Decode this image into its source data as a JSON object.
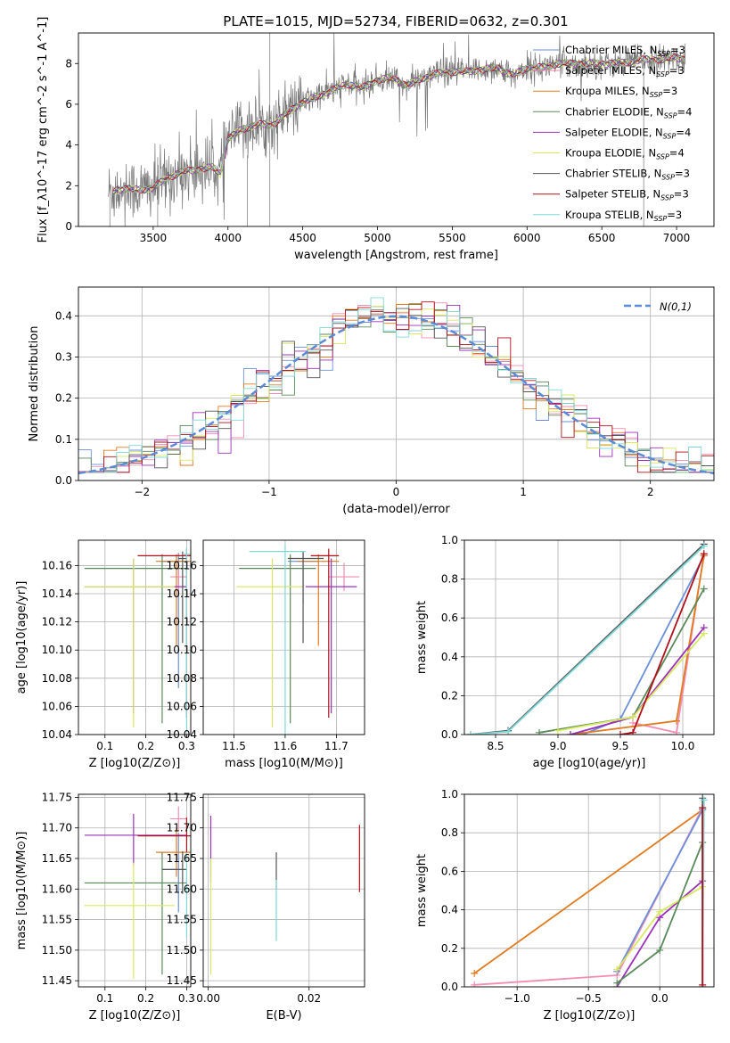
{
  "colors": {
    "Chabrier MILES": "#6a8fd8",
    "Salpeter MILES": "#f28db2",
    "Kroupa MILES": "#e07b20",
    "Chabrier ELODIE": "#5a8a5a",
    "Salpeter ELODIE": "#9b30b8",
    "Kroupa ELODIE": "#d8e860",
    "Chabrier STELIB": "#555555",
    "Salpeter STELIB": "#b0101a",
    "Kroupa STELIB": "#7fd8d8",
    "gaussian": "#5b8ad6",
    "data": "#777777"
  },
  "chart_data": [
    {
      "id": "spectrum",
      "type": "line",
      "title": "PLATE=1015, MJD=52734, FIBERID=0632, z=0.301",
      "xlabel": "wavelength [Angstrom, rest frame]",
      "ylabel": "Flux [f_λ10^-17 erg cm^-2 s^-1 A^-1]",
      "xlim": [
        3000,
        7250
      ],
      "ylim": [
        0,
        9.5
      ],
      "xticks": [
        3500,
        4000,
        4500,
        5000,
        5500,
        6000,
        6500,
        7000
      ],
      "yticks": [
        0,
        2,
        4,
        6,
        8
      ],
      "grid": false,
      "legend_position": "top-right",
      "legend": [
        {
          "base": "Chabrier MILES",
          "nssp": "3"
        },
        {
          "base": "Salpeter MILES",
          "nssp": "3"
        },
        {
          "base": "Kroupa MILES",
          "nssp": "3"
        },
        {
          "base": "Chabrier ELODIE",
          "nssp": "4"
        },
        {
          "base": "Salpeter ELODIE",
          "nssp": "4"
        },
        {
          "base": "Kroupa ELODIE",
          "nssp": "4"
        },
        {
          "base": "Chabrier STELIB",
          "nssp": "3"
        },
        {
          "base": "Salpeter STELIB",
          "nssp": "3"
        },
        {
          "base": "Kroupa STELIB",
          "nssp": "3"
        }
      ],
      "continuum": [
        [
          3200,
          1.7
        ],
        [
          3300,
          1.85
        ],
        [
          3400,
          1.8
        ],
        [
          3500,
          1.9
        ],
        [
          3600,
          2.4
        ],
        [
          3700,
          2.7
        ],
        [
          3800,
          2.8
        ],
        [
          3900,
          2.9
        ],
        [
          3950,
          2.6
        ],
        [
          4000,
          4.3
        ],
        [
          4100,
          4.8
        ],
        [
          4200,
          5.0
        ],
        [
          4300,
          5.0
        ],
        [
          4400,
          5.6
        ],
        [
          4500,
          6.1
        ],
        [
          4600,
          6.4
        ],
        [
          4700,
          6.7
        ],
        [
          4800,
          7.0
        ],
        [
          4900,
          6.8
        ],
        [
          5000,
          7.2
        ],
        [
          5100,
          7.3
        ],
        [
          5200,
          6.9
        ],
        [
          5300,
          7.3
        ],
        [
          5400,
          7.5
        ],
        [
          5500,
          7.6
        ],
        [
          5600,
          7.6
        ],
        [
          5700,
          7.7
        ],
        [
          5800,
          7.8
        ],
        [
          5900,
          7.4
        ],
        [
          6000,
          7.8
        ],
        [
          6100,
          7.8
        ],
        [
          6200,
          8.0
        ],
        [
          6300,
          8.0
        ],
        [
          6400,
          8.0
        ],
        [
          6500,
          8.0
        ],
        [
          6600,
          8.0
        ],
        [
          6700,
          8.1
        ],
        [
          6800,
          8.2
        ],
        [
          6900,
          8.2
        ],
        [
          7000,
          8.3
        ],
        [
          7060,
          8.2
        ]
      ]
    },
    {
      "id": "residuals",
      "type": "histogram",
      "xlabel": "(data-model)/error",
      "ylabel": "Normed distribution",
      "xlim": [
        -2.5,
        2.5
      ],
      "ylim": [
        0,
        0.47
      ],
      "xticks": [
        -2,
        -1,
        0,
        1,
        2
      ],
      "yticks": [
        0.0,
        0.1,
        0.2,
        0.3,
        0.4
      ],
      "grid": true,
      "legend_position": "top-right",
      "gaussian_label": "N(0,1)",
      "bin_width": 0.1
    },
    {
      "id": "age-vs-Z",
      "type": "errorbar",
      "xlabel": "Z [log10(Z/Z⊙)]",
      "ylabel": "age  [log10(age/yr)]",
      "xlim": [
        0.035,
        0.31
      ],
      "ylim": [
        10.04,
        10.178
      ],
      "xticks": [
        0.1,
        0.2,
        0.3
      ],
      "yticks": [
        10.04,
        10.06,
        10.08,
        10.1,
        10.12,
        10.14,
        10.16
      ],
      "grid": true,
      "points": [
        {
          "series": "Chabrier MILES",
          "x": 0.28,
          "y": 10.163,
          "xerr": [
            0.04,
            0.02
          ],
          "yerr": [
            0.09,
            0.006
          ]
        },
        {
          "series": "Salpeter MILES",
          "x": 0.28,
          "y": 10.152,
          "xerr": [
            0.02,
            0.02
          ],
          "yerr": [
            0.01,
            0.01
          ]
        },
        {
          "series": "Kroupa MILES",
          "x": 0.275,
          "y": 10.163,
          "xerr": [
            0.05,
            0.035
          ],
          "yerr": [
            0.06,
            0.005
          ]
        },
        {
          "series": "Chabrier ELODIE",
          "x": 0.24,
          "y": 10.158,
          "xerr": [
            0.19,
            0.06
          ],
          "yerr": [
            0.11,
            0.01
          ]
        },
        {
          "series": "Salpeter ELODIE",
          "x": 0.17,
          "y": 10.145,
          "xerr": [
            0.12,
            0.13
          ],
          "yerr": [
            0.09,
            0.02
          ]
        },
        {
          "series": "Kroupa ELODIE",
          "x": 0.17,
          "y": 10.145,
          "xerr": [
            0.12,
            0.1
          ],
          "yerr": [
            0.1,
            0.02
          ]
        },
        {
          "series": "Chabrier STELIB",
          "x": 0.29,
          "y": 10.165,
          "xerr": [
            0.01,
            0.01
          ],
          "yerr": [
            0.06,
            0.005
          ]
        },
        {
          "series": "Salpeter STELIB",
          "x": 0.3,
          "y": 10.167,
          "xerr": [
            0.12,
            0.01
          ],
          "yerr": [
            0.115,
            0.005
          ]
        },
        {
          "series": "Kroupa STELIB",
          "x": 0.3,
          "y": 10.168,
          "xerr": [
            0.01,
            0.01
          ],
          "yerr": [
            0.125,
            0.005
          ]
        }
      ]
    },
    {
      "id": "age-vs-mass",
      "type": "errorbar",
      "xlabel": "mass [log10(M/M⊙)]",
      "ylabel": "",
      "xlim": [
        11.44,
        11.755
      ],
      "ylim": [
        10.04,
        10.178
      ],
      "xticks": [
        11.5,
        11.6,
        11.7
      ],
      "yticks": [
        10.04,
        10.06,
        10.08,
        10.1,
        10.12,
        10.14,
        10.16
      ],
      "grid": true,
      "points": [
        {
          "series": "Chabrier MILES",
          "x": 11.635,
          "y": 10.163,
          "xerr": [
            0.03,
            0.03
          ],
          "yerr": [
            0.03,
            0.006
          ]
        },
        {
          "series": "Salpeter MILES",
          "x": 11.715,
          "y": 10.152,
          "xerr": [
            0.03,
            0.03
          ],
          "yerr": [
            0.01,
            0.01
          ]
        },
        {
          "series": "Kroupa MILES",
          "x": 11.665,
          "y": 10.163,
          "xerr": [
            0.04,
            0.04
          ],
          "yerr": [
            0.06,
            0.005
          ]
        },
        {
          "series": "Chabrier ELODIE",
          "x": 11.61,
          "y": 10.158,
          "xerr": [
            0.1,
            0.05
          ],
          "yerr": [
            0.11,
            0.01
          ]
        },
        {
          "series": "Salpeter ELODIE",
          "x": 11.69,
          "y": 10.145,
          "xerr": [
            0.05,
            0.05
          ],
          "yerr": [
            0.09,
            0.02
          ]
        },
        {
          "series": "Kroupa ELODIE",
          "x": 11.575,
          "y": 10.145,
          "xerr": [
            0.07,
            0.06
          ],
          "yerr": [
            0.1,
            0.02
          ]
        },
        {
          "series": "Chabrier STELIB",
          "x": 11.635,
          "y": 10.165,
          "xerr": [
            0.03,
            0.04
          ],
          "yerr": [
            0.06,
            0.005
          ]
        },
        {
          "series": "Salpeter STELIB",
          "x": 11.685,
          "y": 10.167,
          "xerr": [
            0.035,
            0.02
          ],
          "yerr": [
            0.115,
            0.005
          ]
        },
        {
          "series": "Kroupa STELIB",
          "x": 11.6,
          "y": 10.17,
          "xerr": [
            0.07,
            0.04
          ],
          "yerr": [
            0.13,
            0.005
          ]
        }
      ]
    },
    {
      "id": "weight-vs-age",
      "type": "line",
      "xlabel": "age  [log10(age/yr)]",
      "ylabel": "mass weight",
      "xlim": [
        8.25,
        10.25
      ],
      "ylim": [
        0,
        1.0
      ],
      "xticks": [
        8.5,
        9.0,
        9.5,
        10.0
      ],
      "yticks": [
        0.0,
        0.2,
        0.4,
        0.6,
        0.8,
        1.0
      ],
      "grid": true,
      "series": [
        {
          "series": "Chabrier MILES",
          "x": [
            9.2,
            9.5,
            10.17
          ],
          "y": [
            0.0,
            0.08,
            0.92
          ]
        },
        {
          "series": "Salpeter MILES",
          "x": [
            9.6,
            9.95,
            10.17
          ],
          "y": [
            0.06,
            0.01,
            0.93
          ]
        },
        {
          "series": "Kroupa MILES",
          "x": [
            9.1,
            9.95,
            10.17
          ],
          "y": [
            0.0,
            0.07,
            0.92
          ]
        },
        {
          "series": "Chabrier ELODIE",
          "x": [
            8.85,
            9.6,
            10.17
          ],
          "y": [
            0.01,
            0.09,
            0.75
          ]
        },
        {
          "series": "Salpeter ELODIE",
          "x": [
            9.1,
            9.6,
            10.17
          ],
          "y": [
            0.0,
            0.09,
            0.55
          ]
        },
        {
          "series": "Kroupa ELODIE",
          "x": [
            9.0,
            9.6,
            10.17
          ],
          "y": [
            0.02,
            0.09,
            0.52
          ]
        },
        {
          "series": "Chabrier STELIB",
          "x": [
            8.3,
            8.6,
            10.17
          ],
          "y": [
            0.0,
            0.02,
            0.98
          ]
        },
        {
          "series": "Salpeter STELIB",
          "x": [
            9.5,
            9.6,
            10.17
          ],
          "y": [
            0.0,
            0.01,
            0.93
          ]
        },
        {
          "series": "Kroupa STELIB",
          "x": [
            8.3,
            8.6,
            10.17
          ],
          "y": [
            0.0,
            0.015,
            0.97
          ]
        }
      ]
    },
    {
      "id": "mass-vs-Z",
      "type": "errorbar",
      "xlabel": "Z [log10(Z/Z⊙)]",
      "ylabel": "mass [log10(M/M⊙)]",
      "xlim": [
        0.035,
        0.31
      ],
      "ylim": [
        11.44,
        11.755
      ],
      "xticks": [
        0.1,
        0.2,
        0.3
      ],
      "yticks": [
        11.45,
        11.5,
        11.55,
        11.6,
        11.65,
        11.7,
        11.75
      ],
      "grid": true,
      "points": [
        {
          "series": "Chabrier MILES",
          "x": 0.28,
          "y": 11.632,
          "xerr": [
            0.04,
            0.02
          ],
          "yerr": [
            0.07,
            0.06
          ]
        },
        {
          "series": "Salpeter MILES",
          "x": 0.28,
          "y": 11.715,
          "xerr": [
            0.02,
            0.02
          ],
          "yerr": [
            0.02,
            0.02
          ]
        },
        {
          "series": "Kroupa MILES",
          "x": 0.275,
          "y": 11.66,
          "xerr": [
            0.05,
            0.035
          ],
          "yerr": [
            0.04,
            0.04
          ]
        },
        {
          "series": "Chabrier ELODIE",
          "x": 0.24,
          "y": 11.61,
          "xerr": [
            0.19,
            0.06
          ],
          "yerr": [
            0.15,
            0.05
          ]
        },
        {
          "series": "Salpeter ELODIE",
          "x": 0.17,
          "y": 11.688,
          "xerr": [
            0.12,
            0.13
          ],
          "yerr": [
            0.05,
            0.035
          ]
        },
        {
          "series": "Kroupa ELODIE",
          "x": 0.17,
          "y": 11.573,
          "xerr": [
            0.12,
            0.1
          ],
          "yerr": [
            0.12,
            0.07
          ]
        },
        {
          "series": "Chabrier STELIB",
          "x": 0.29,
          "y": 11.632,
          "xerr": [
            0.05,
            0.01
          ],
          "yerr": [
            0.04,
            0.03
          ]
        },
        {
          "series": "Salpeter STELIB",
          "x": 0.3,
          "y": 11.687,
          "xerr": [
            0.12,
            0.01
          ],
          "yerr": [
            0.04,
            0.03
          ]
        },
        {
          "series": "Kroupa STELIB",
          "x": 0.3,
          "y": 11.6,
          "xerr": [
            0.01,
            0.01
          ],
          "yerr": [
            0.08,
            0.06
          ]
        }
      ]
    },
    {
      "id": "mass-vs-ebv",
      "type": "errorbar",
      "xlabel": "E(B-V)",
      "ylabel": "",
      "xlim": [
        -0.001,
        0.031
      ],
      "ylim": [
        11.44,
        11.755
      ],
      "xticks": [
        0.0,
        0.02
      ],
      "yticks": [
        11.45,
        11.5,
        11.55,
        11.6,
        11.65,
        11.7,
        11.75
      ],
      "grid": true,
      "points": [
        {
          "series": "Salpeter ELODIE",
          "x": 0.0005,
          "y": 11.665,
          "xerr": [
            0,
            0
          ],
          "yerr": [
            0.055,
            0.055
          ]
        },
        {
          "series": "Kroupa ELODIE",
          "x": 0.0005,
          "y": 11.56,
          "xerr": [
            0,
            0
          ],
          "yerr": [
            0.1,
            0.09
          ]
        },
        {
          "series": "Chabrier STELIB",
          "x": 0.0135,
          "y": 11.63,
          "xerr": [
            0,
            0
          ],
          "yerr": [
            0.03,
            0.03
          ]
        },
        {
          "series": "Kroupa STELIB",
          "x": 0.0135,
          "y": 11.565,
          "xerr": [
            0,
            0
          ],
          "yerr": [
            0.05,
            0.05
          ]
        },
        {
          "series": "Salpeter STELIB",
          "x": 0.03,
          "y": 11.65,
          "xerr": [
            0,
            0
          ],
          "yerr": [
            0.055,
            0.055
          ]
        }
      ]
    },
    {
      "id": "weight-vs-Z",
      "type": "line",
      "xlabel": "Z [log10(Z/Z⊙)]",
      "ylabel": "mass weight",
      "xlim": [
        -1.37,
        0.38
      ],
      "ylim": [
        0,
        1.0
      ],
      "xticks": [
        -1.0,
        -0.5,
        0.0
      ],
      "yticks": [
        0.0,
        0.2,
        0.4,
        0.6,
        0.8,
        1.0
      ],
      "grid": true,
      "series": [
        {
          "series": "Kroupa MILES",
          "x": [
            -1.3,
            0.3
          ],
          "y": [
            0.07,
            0.92
          ]
        },
        {
          "series": "Salpeter MILES",
          "x": [
            -1.3,
            -0.3,
            0.3
          ],
          "y": [
            0.01,
            0.06,
            0.93
          ]
        },
        {
          "series": "Chabrier MILES",
          "x": [
            -0.3,
            0.3
          ],
          "y": [
            0.08,
            0.92
          ]
        },
        {
          "series": "Salpeter ELODIE",
          "x": [
            -0.3,
            0.0,
            0.3
          ],
          "y": [
            0.0,
            0.36,
            0.55
          ]
        },
        {
          "series": "Kroupa ELODIE",
          "x": [
            -0.3,
            0.0,
            0.3
          ],
          "y": [
            0.09,
            0.39,
            0.52
          ]
        },
        {
          "series": "Chabrier ELODIE",
          "x": [
            -0.3,
            0.0,
            0.3
          ],
          "y": [
            0.02,
            0.19,
            0.75
          ]
        },
        {
          "series": "Chabrier STELIB",
          "x": [
            0.3,
            0.3
          ],
          "y": [
            0.0,
            0.98
          ]
        },
        {
          "series": "Kroupa STELIB",
          "x": [
            0.3,
            0.31
          ],
          "y": [
            0.0,
            0.97
          ]
        },
        {
          "series": "Salpeter STELIB",
          "x": [
            0.3,
            0.3
          ],
          "y": [
            0.01,
            0.93
          ]
        }
      ]
    }
  ]
}
